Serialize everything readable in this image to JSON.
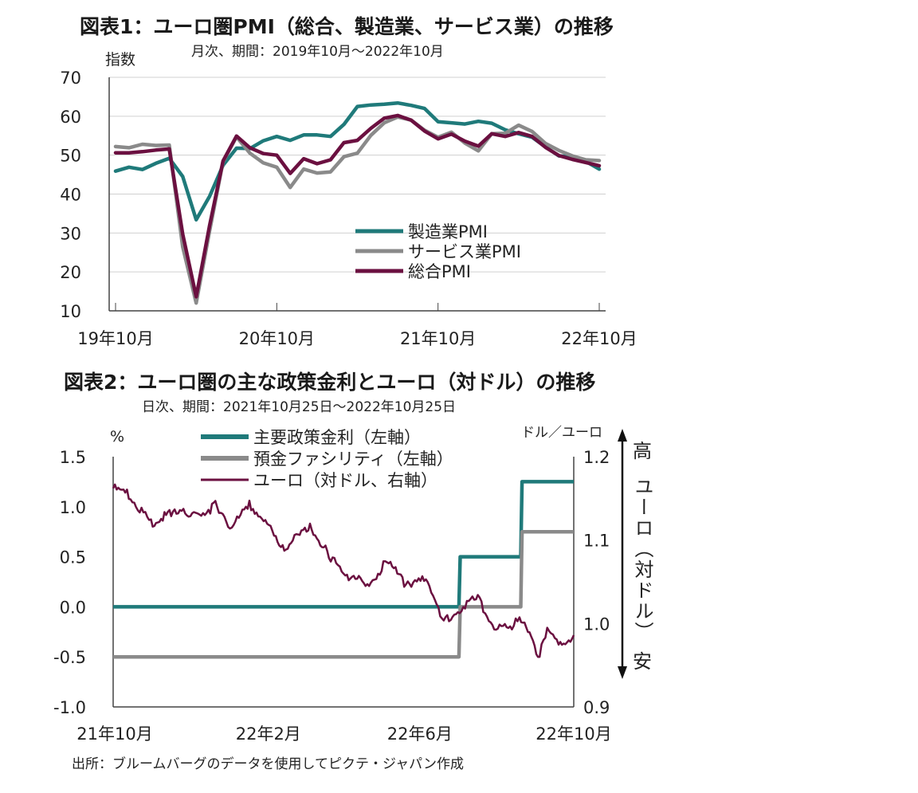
{
  "chart1": {
    "title": "図表1：ユーロ圏PMI（総合、製造業、サービス業）の推移",
    "subtitle": "月次、期間：2019年10月～2022年10月",
    "ylabel": "指数",
    "chart_data": {
      "type": "line",
      "yticks": [
        "70",
        "60",
        "50",
        "40",
        "30",
        "20",
        "10"
      ],
      "xticks": [
        "19年10月",
        "20年10月",
        "21年10月",
        "22年10月"
      ],
      "ylim": [
        10,
        70
      ],
      "legend_position": "bottom-right",
      "grid": true,
      "series": [
        {
          "name": "製造業PMI",
          "color": "#1f7a7a",
          "values": [
            45.9,
            46.9,
            46.3,
            47.9,
            49.2,
            44.5,
            33.4,
            39.4,
            47.4,
            51.8,
            51.7,
            53.7,
            54.8,
            53.8,
            55.2,
            55.2,
            54.8,
            57.9,
            62.5,
            62.9,
            63.1,
            63.4,
            62.8,
            62.0,
            58.6,
            58.3,
            58.0,
            58.7,
            58.2,
            56.5,
            55.5,
            54.6,
            52.1,
            49.8,
            49.6,
            48.4,
            46.4
          ]
        },
        {
          "name": "サービス業PMI",
          "color": "#8a8a8a",
          "values": [
            52.2,
            51.9,
            52.8,
            52.5,
            52.6,
            26.4,
            12.0,
            30.5,
            48.3,
            54.7,
            50.5,
            48.0,
            46.9,
            41.7,
            46.4,
            45.4,
            45.7,
            49.6,
            50.5,
            55.1,
            58.3,
            59.8,
            59.0,
            56.4,
            54.6,
            55.9,
            53.1,
            51.1,
            55.5,
            55.6,
            57.7,
            56.1,
            53.0,
            51.2,
            49.8,
            48.8,
            48.6
          ]
        },
        {
          "name": "総合PMI",
          "color": "#6b1040",
          "values": [
            50.6,
            50.6,
            50.9,
            51.3,
            51.6,
            29.7,
            13.6,
            31.9,
            48.5,
            54.9,
            51.9,
            50.4,
            50.0,
            45.3,
            49.1,
            47.8,
            48.8,
            53.2,
            53.8,
            56.9,
            59.5,
            60.2,
            59.0,
            56.2,
            54.2,
            55.4,
            53.6,
            52.3,
            55.5,
            54.8,
            55.8,
            54.8,
            52.0,
            49.9,
            48.9,
            48.1,
            47.3
          ]
        }
      ]
    }
  },
  "chart2": {
    "title": "図表2：ユーロ圏の主な政策金利とユーロ（対ドル）の推移",
    "subtitle": "日次、期間：2021年10月25日～2022年10月25日",
    "ylabel_left": "%",
    "ylabel_right": "ドル／ユーロ",
    "axis_right_top": "高",
    "axis_right_middle": "ユーロ（対ドル）",
    "axis_right_bottom": "安",
    "chart_data": {
      "type": "line",
      "yticks_left": [
        "1.5",
        "1.0",
        "0.5",
        "0.0",
        "-0.5",
        "-1.0"
      ],
      "yticks_right": [
        "1.2",
        "1.1",
        "1.0",
        "0.9"
      ],
      "xticks": [
        "21年10月",
        "22年2月",
        "22年6月",
        "22年10月"
      ],
      "ylim_left": [
        -1.0,
        1.5
      ],
      "ylim_right": [
        0.9,
        1.2
      ],
      "legend_position": "top-left",
      "grid": false,
      "series": [
        {
          "name": "主要政策金利（左軸）",
          "color": "#1f7a7a",
          "axis": "left",
          "points": [
            [
              "2021-10-25",
              0.0
            ],
            [
              "2022-07-26",
              0.0
            ],
            [
              "2022-07-27",
              0.5
            ],
            [
              "2022-09-13",
              0.5
            ],
            [
              "2022-09-14",
              1.25
            ],
            [
              "2022-10-25",
              1.25
            ]
          ]
        },
        {
          "name": "預金ファシリティ（左軸）",
          "color": "#8a8a8a",
          "axis": "left",
          "points": [
            [
              "2021-10-25",
              -0.5
            ],
            [
              "2022-07-26",
              -0.5
            ],
            [
              "2022-07-27",
              0.0
            ],
            [
              "2022-09-13",
              0.0
            ],
            [
              "2022-09-14",
              0.75
            ],
            [
              "2022-10-25",
              0.75
            ]
          ]
        },
        {
          "name": "ユーロ（対ドル、右軸）",
          "color": "#6b1040",
          "axis": "right",
          "points": [
            [
              "2021-10-25",
              1.162
            ],
            [
              "2021-11-05",
              1.155
            ],
            [
              "2021-11-15",
              1.138
            ],
            [
              "2021-11-24",
              1.121
            ],
            [
              "2021-12-10",
              1.131
            ],
            [
              "2021-12-28",
              1.133
            ],
            [
              "2022-01-10",
              1.136
            ],
            [
              "2022-01-14",
              1.145
            ],
            [
              "2022-01-27",
              1.115
            ],
            [
              "2022-02-10",
              1.142
            ],
            [
              "2022-02-24",
              1.12
            ],
            [
              "2022-03-07",
              1.087
            ],
            [
              "2022-03-15",
              1.098
            ],
            [
              "2022-03-30",
              1.115
            ],
            [
              "2022-04-14",
              1.083
            ],
            [
              "2022-04-27",
              1.054
            ],
            [
              "2022-05-05",
              1.058
            ],
            [
              "2022-05-13",
              1.04
            ],
            [
              "2022-05-30",
              1.076
            ],
            [
              "2022-06-14",
              1.045
            ],
            [
              "2022-06-27",
              1.058
            ],
            [
              "2022-07-14",
              1.003
            ],
            [
              "2022-07-28",
              1.02
            ],
            [
              "2022-08-10",
              1.03
            ],
            [
              "2022-08-23",
              0.997
            ],
            [
              "2022-09-06",
              0.992
            ],
            [
              "2022-09-12",
              1.01
            ],
            [
              "2022-09-28",
              0.96
            ],
            [
              "2022-10-04",
              0.998
            ],
            [
              "2022-10-13",
              0.971
            ],
            [
              "2022-10-25",
              0.986
            ]
          ]
        }
      ]
    }
  },
  "source": "出所：ブルームバーグのデータを使用してピクテ・ジャパン作成"
}
